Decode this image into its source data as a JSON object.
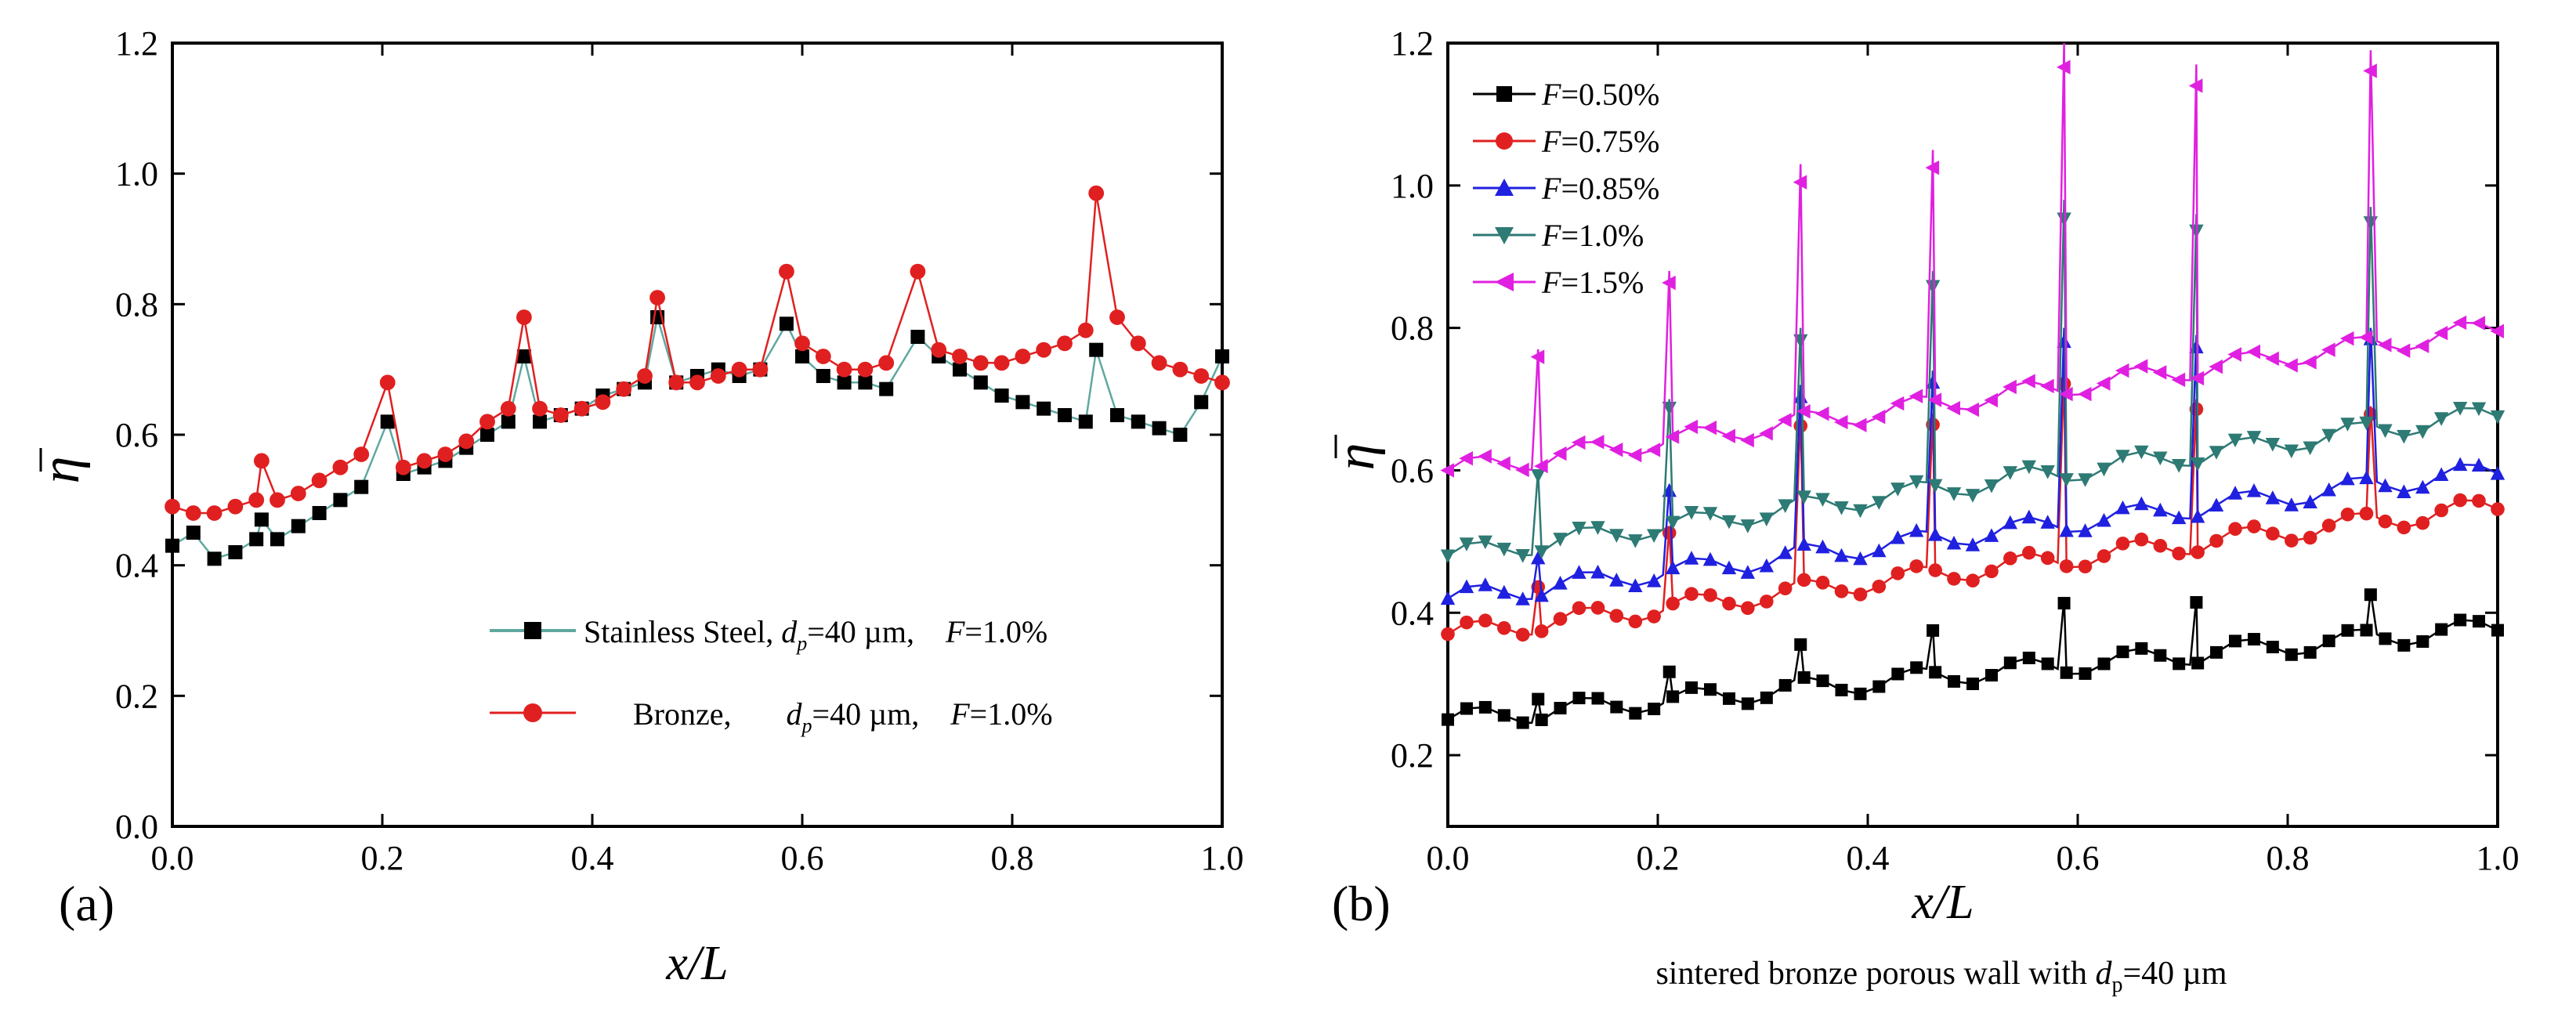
{
  "chart_data": [
    {
      "type": "line",
      "panel_label": "(a)",
      "title": "",
      "xlabel": "x/L",
      "ylabel": "η",
      "xlim": [
        0.0,
        1.0
      ],
      "ylim": [
        0.0,
        1.2
      ],
      "xticks": [
        "0.0",
        "0.2",
        "0.4",
        "0.6",
        "0.8",
        "1.0"
      ],
      "yticks": [
        "0.0",
        "0.2",
        "0.4",
        "0.6",
        "0.8",
        "1.0",
        "1.2"
      ],
      "grid": false,
      "legend_position": "bottom-right",
      "series": [
        {
          "name": "Stainless Steel, dp=40 µm,    F=1.0%",
          "legend_parts": {
            "material": "Stainless Steel, ",
            "d": "d",
            "sub": "p",
            "dval": "=40 µm,    ",
            "F": "F",
            "fval": "=1.0%"
          },
          "color": "#000000",
          "line_color": "#5fa8a0",
          "marker": "square",
          "x": [
            0.0,
            0.02,
            0.04,
            0.06,
            0.08,
            0.085,
            0.1,
            0.12,
            0.14,
            0.16,
            0.18,
            0.205,
            0.22,
            0.24,
            0.26,
            0.28,
            0.3,
            0.32,
            0.335,
            0.35,
            0.37,
            0.39,
            0.41,
            0.43,
            0.45,
            0.462,
            0.48,
            0.5,
            0.52,
            0.54,
            0.56,
            0.585,
            0.6,
            0.62,
            0.64,
            0.66,
            0.68,
            0.71,
            0.73,
            0.75,
            0.77,
            0.79,
            0.81,
            0.83,
            0.85,
            0.87,
            0.88,
            0.9,
            0.92,
            0.94,
            0.96,
            0.98,
            1.0
          ],
          "y": [
            0.43,
            0.45,
            0.41,
            0.42,
            0.44,
            0.47,
            0.44,
            0.46,
            0.48,
            0.5,
            0.52,
            0.62,
            0.54,
            0.55,
            0.56,
            0.58,
            0.6,
            0.62,
            0.72,
            0.62,
            0.63,
            0.64,
            0.66,
            0.67,
            0.68,
            0.78,
            0.68,
            0.69,
            0.7,
            0.69,
            0.7,
            0.77,
            0.72,
            0.69,
            0.68,
            0.68,
            0.67,
            0.75,
            0.72,
            0.7,
            0.68,
            0.66,
            0.65,
            0.64,
            0.63,
            0.62,
            0.73,
            0.63,
            0.62,
            0.61,
            0.6,
            0.65,
            0.72
          ]
        },
        {
          "name": "Bronze,       dp=40 µm,    F=1.0%",
          "legend_parts": {
            "material": "Bronze,       ",
            "d": "d",
            "sub": "p",
            "dval": "=40 µm,    ",
            "F": "F",
            "fval": "=1.0%"
          },
          "color": "#e02020",
          "line_color": "#e02020",
          "marker": "circle",
          "x": [
            0.0,
            0.02,
            0.04,
            0.06,
            0.08,
            0.085,
            0.1,
            0.12,
            0.14,
            0.16,
            0.18,
            0.205,
            0.22,
            0.24,
            0.26,
            0.28,
            0.3,
            0.32,
            0.335,
            0.35,
            0.37,
            0.39,
            0.41,
            0.43,
            0.45,
            0.462,
            0.48,
            0.5,
            0.52,
            0.54,
            0.56,
            0.585,
            0.6,
            0.62,
            0.64,
            0.66,
            0.68,
            0.71,
            0.73,
            0.75,
            0.77,
            0.79,
            0.81,
            0.83,
            0.85,
            0.87,
            0.88,
            0.9,
            0.92,
            0.94,
            0.96,
            0.98,
            1.0
          ],
          "y": [
            0.49,
            0.48,
            0.48,
            0.49,
            0.5,
            0.56,
            0.5,
            0.51,
            0.53,
            0.55,
            0.57,
            0.68,
            0.55,
            0.56,
            0.57,
            0.59,
            0.62,
            0.64,
            0.78,
            0.64,
            0.63,
            0.64,
            0.65,
            0.67,
            0.69,
            0.81,
            0.68,
            0.68,
            0.69,
            0.7,
            0.7,
            0.85,
            0.74,
            0.72,
            0.7,
            0.7,
            0.71,
            0.85,
            0.73,
            0.72,
            0.71,
            0.71,
            0.72,
            0.73,
            0.74,
            0.76,
            0.97,
            0.78,
            0.74,
            0.71,
            0.7,
            0.69,
            0.68
          ]
        }
      ]
    },
    {
      "type": "line",
      "panel_label": "(b)",
      "title": "",
      "xlabel": "x/L",
      "ylabel": "η",
      "note_parts": {
        "pre": "sintered bronze porous wall with ",
        "d": "d",
        "sub": "p",
        "post": "=40 µm"
      },
      "xlim": [
        0.0,
        1.0
      ],
      "ylim": [
        0.1,
        1.2
      ],
      "xticks": [
        "0.0",
        "0.2",
        "0.4",
        "0.6",
        "0.8",
        "1.0"
      ],
      "yticks": [
        "0.2",
        "0.4",
        "0.6",
        "0.8",
        "1.0",
        "1.2"
      ],
      "grid": false,
      "legend_position": "top-left",
      "spikes_x": [
        0.086,
        0.211,
        0.336,
        0.462,
        0.587,
        0.713,
        0.879
      ],
      "series": [
        {
          "name": "F=0.50%",
          "legend_F": "F",
          "legend_val": "=0.50%",
          "color": "#000000",
          "marker": "square",
          "base": [
            0.25,
            0.38
          ],
          "spikes": [
            0.28,
            0.32,
            0.36,
            0.38,
            0.42,
            0.42,
            0.43
          ]
        },
        {
          "name": "F=0.75%",
          "legend_F": "F",
          "legend_val": "=0.75%",
          "color": "#e02020",
          "marker": "circle",
          "base": [
            0.37,
            0.55
          ],
          "spikes": [
            0.44,
            0.52,
            0.68,
            0.68,
            0.74,
            0.7,
            0.69
          ]
        },
        {
          "name": "F=0.85%",
          "legend_F": "F",
          "legend_val": "=0.85%",
          "color": "#2020e0",
          "marker": "triangle-up",
          "base": [
            0.42,
            0.6
          ],
          "spikes": [
            0.48,
            0.58,
            0.72,
            0.74,
            0.8,
            0.79,
            0.8
          ]
        },
        {
          "name": "F=1.0%",
          "legend_F": "F",
          "legend_val": "=1.0%",
          "color": "#2e7a74",
          "marker": "triangle-down",
          "base": [
            0.48,
            0.68
          ],
          "spikes": [
            0.6,
            0.7,
            0.8,
            0.88,
            0.98,
            0.96,
            0.97
          ]
        },
        {
          "name": "F=1.5%",
          "legend_F": "F",
          "legend_val": "=1.5%",
          "color": "#e020e0",
          "marker": "triangle-left",
          "base": [
            0.6,
            0.8
          ],
          "spikes": [
            0.77,
            0.88,
            1.03,
            1.05,
            1.2,
            1.17,
            1.19
          ]
        }
      ]
    }
  ]
}
